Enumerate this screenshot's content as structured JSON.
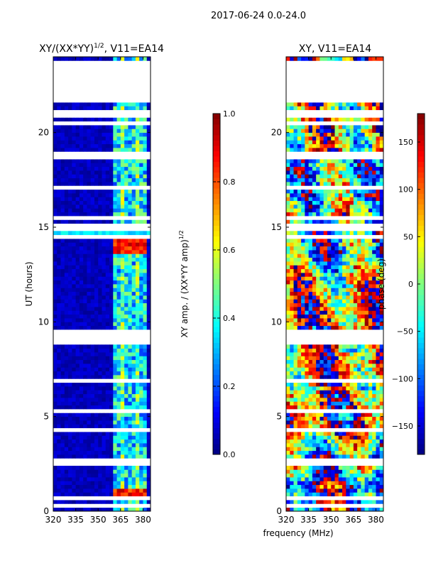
{
  "suptitle": "2017-06-24 0.0-24.0",
  "shared_xlabel": "frequency (MHz)",
  "chart_data": [
    {
      "type": "heatmap",
      "title_main": "XY/(XX*YY)",
      "title_exp": "1/2",
      "title_rest": ", V11=EA14",
      "xlabel": "frequency (MHz)",
      "ylabel": "UT (hours)",
      "xlim": [
        320,
        385
      ],
      "ylim": [
        0,
        24
      ],
      "xticks": [
        320,
        335,
        350,
        365,
        380
      ],
      "yticks": [
        0,
        5,
        10,
        15,
        20
      ],
      "colorbar": {
        "label_main": "XY amp. / (XX*YY amp)",
        "label_exp": "1/2",
        "range": [
          0.0,
          1.0
        ],
        "ticks": [
          "0.0",
          "0.2",
          "0.4",
          "0.6",
          "0.8",
          "1.0"
        ],
        "tick_values": [
          0.0,
          0.2,
          0.4,
          0.6,
          0.8,
          1.0
        ]
      },
      "gap_intervals_hours": [
        [
          8.8,
          9.7
        ],
        [
          21.8,
          23.8
        ],
        [
          14.8,
          14.9
        ],
        [
          2.5,
          2.7
        ]
      ],
      "bright_band_mhz": [
        361,
        383
      ]
    },
    {
      "type": "heatmap",
      "title": "XY, V11=EA14",
      "xlabel": "frequency (MHz)",
      "ylabel": "",
      "xlim": [
        320,
        385
      ],
      "ylim": [
        0,
        24
      ],
      "xticks": [
        320,
        335,
        350,
        365,
        380
      ],
      "yticks": [
        0,
        5,
        10,
        15,
        20
      ],
      "colorbar": {
        "label": "phase (deg)",
        "range": [
          -180,
          180
        ],
        "ticks": [
          "−150",
          "−100",
          "−50",
          "0",
          "50",
          "100",
          "150"
        ],
        "tick_values": [
          -150,
          -100,
          -50,
          0,
          50,
          100,
          150
        ]
      },
      "gap_intervals_hours": [
        [
          8.8,
          9.7
        ],
        [
          21.8,
          23.8
        ],
        [
          14.8,
          14.9
        ],
        [
          2.5,
          2.7
        ]
      ]
    }
  ]
}
